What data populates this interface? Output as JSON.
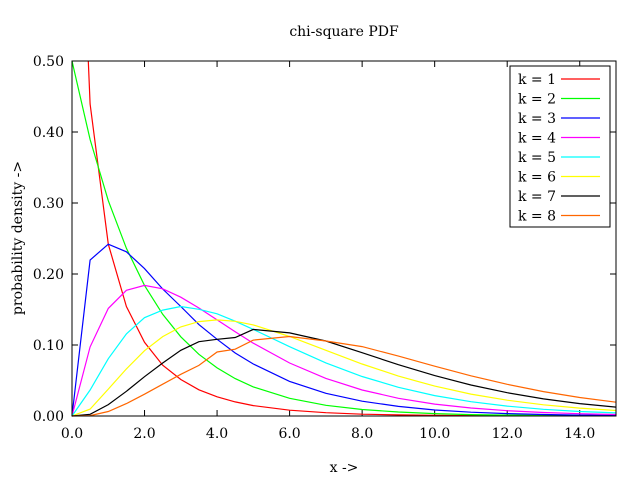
{
  "chart_data": {
    "type": "line",
    "title": "chi-square PDF",
    "xlabel": "x ->",
    "ylabel": "probability density ->",
    "xlim": [
      0,
      15
    ],
    "ylim": [
      0,
      0.5
    ],
    "x_ticks": [
      0,
      2,
      4,
      6,
      8,
      10,
      12,
      14
    ],
    "x_tick_labels": [
      "0.0",
      "2.0",
      "4.0",
      "6.0",
      "8.0",
      "10.0",
      "12.0",
      "14.0"
    ],
    "y_ticks": [
      0,
      0.1,
      0.2,
      0.3,
      0.4,
      0.5
    ],
    "y_tick_labels": [
      "0.00",
      "0.10",
      "0.20",
      "0.30",
      "0.40",
      "0.50"
    ],
    "grid": false,
    "legend_position": "top-right",
    "x": [
      0,
      0.5,
      1,
      1.5,
      2,
      2.5,
      3,
      3.5,
      4,
      4.5,
      5,
      6,
      7,
      8,
      9,
      10,
      11,
      12,
      13,
      14,
      15
    ],
    "series": [
      {
        "name": "k = 1",
        "color": "#ff0000",
        "values": [
          null,
          0.4394,
          0.242,
          0.1542,
          0.1038,
          0.0716,
          0.0514,
          0.0369,
          0.027,
          0.0198,
          0.0146,
          0.0081,
          0.0046,
          0.0026,
          0.0015,
          0.0009,
          0.0005,
          0.0003,
          0.0002,
          0.0001,
          0.0001
        ]
      },
      {
        "name": "k = 2",
        "color": "#00ff00",
        "values": [
          0.5,
          0.3894,
          0.3033,
          0.2362,
          0.1839,
          0.1433,
          0.1116,
          0.0869,
          0.0677,
          0.0527,
          0.041,
          0.0249,
          0.0151,
          0.0092,
          0.0056,
          0.0034,
          0.002,
          0.0012,
          0.0008,
          0.0005,
          0.0003
        ]
      },
      {
        "name": "k = 3",
        "color": "#0000ff",
        "values": [
          0,
          0.2197,
          0.242,
          0.2313,
          0.2076,
          0.1789,
          0.1542,
          0.1288,
          0.108,
          0.0888,
          0.0733,
          0.0488,
          0.032,
          0.0209,
          0.0135,
          0.0085,
          0.0054,
          0.0034,
          0.0021,
          0.0013,
          0.0008
        ]
      },
      {
        "name": "k = 4",
        "color": "#ff00ff",
        "values": [
          0,
          0.0973,
          0.1516,
          0.1771,
          0.1839,
          0.1791,
          0.1673,
          0.1521,
          0.1353,
          0.1186,
          0.1026,
          0.0747,
          0.0529,
          0.0366,
          0.025,
          0.0168,
          0.0112,
          0.0074,
          0.0049,
          0.0032,
          0.0021
        ]
      },
      {
        "name": "k = 5",
        "color": "#00ffff",
        "values": [
          0,
          0.0366,
          0.0807,
          0.1157,
          0.1384,
          0.1491,
          0.1542,
          0.1503,
          0.144,
          0.1335,
          0.122,
          0.0976,
          0.0748,
          0.0557,
          0.0404,
          0.0287,
          0.0201,
          0.0139,
          0.0095,
          0.0064,
          0.0043
        ]
      },
      {
        "name": "k = 6",
        "color": "#ffff00",
        "values": [
          0,
          0.0097,
          0.0379,
          0.0664,
          0.092,
          0.1119,
          0.1255,
          0.133,
          0.1353,
          0.1334,
          0.1283,
          0.112,
          0.0925,
          0.0733,
          0.0562,
          0.0421,
          0.0308,
          0.0223,
          0.0158,
          0.0111,
          0.0078
        ]
      },
      {
        "name": "k = 7",
        "color": "#000000",
        "values": [
          0,
          0.0024,
          0.0161,
          0.0348,
          0.0553,
          0.0746,
          0.0925,
          0.1047,
          0.108,
          0.1105,
          0.122,
          0.1171,
          0.1057,
          0.0891,
          0.0722,
          0.0569,
          0.0437,
          0.0328,
          0.0241,
          0.0175,
          0.0125
        ]
      },
      {
        "name": "k = 8",
        "color": "#ff6600",
        "values": [
          0,
          0.0006,
          0.0063,
          0.0174,
          0.0307,
          0.0448,
          0.0587,
          0.0713,
          0.0902,
          0.0941,
          0.1069,
          0.112,
          0.1057,
          0.0977,
          0.0844,
          0.0702,
          0.0566,
          0.0446,
          0.0344,
          0.026,
          0.0194
        ]
      }
    ]
  }
}
